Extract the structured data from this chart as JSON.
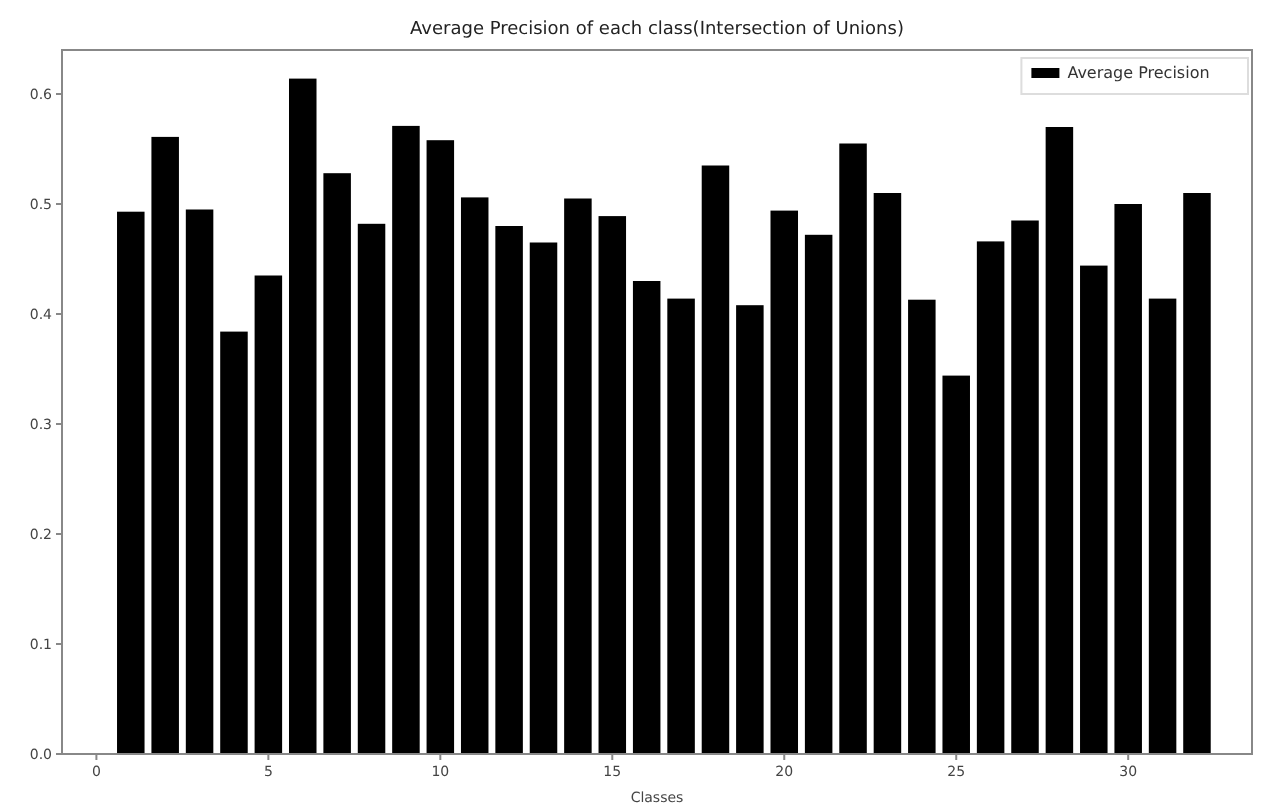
{
  "chart_data": {
    "type": "bar",
    "title": "Average Precision of each class(Intersection of Unions)",
    "xlabel": "Classes",
    "x": [
      1,
      2,
      3,
      4,
      5,
      6,
      7,
      8,
      9,
      10,
      11,
      12,
      13,
      14,
      15,
      16,
      17,
      18,
      19,
      20,
      21,
      22,
      23,
      24,
      25,
      26,
      27,
      28,
      29,
      30,
      31,
      32
    ],
    "series": [
      {
        "name": "Average Precision",
        "color": "#000000",
        "values": [
          0.493,
          0.561,
          0.495,
          0.384,
          0.435,
          0.614,
          0.528,
          0.482,
          0.571,
          0.558,
          0.506,
          0.48,
          0.465,
          0.505,
          0.489,
          0.43,
          0.414,
          0.535,
          0.408,
          0.494,
          0.472,
          0.555,
          0.51,
          0.413,
          0.344,
          0.466,
          0.485,
          0.57,
          0.444,
          0.5,
          0.414,
          0.51
        ]
      }
    ],
    "xlim": [
      -1,
      33.6
    ],
    "xticks": [
      0,
      5,
      10,
      15,
      20,
      25,
      30
    ],
    "ylim": [
      0,
      0.64
    ],
    "yticks": [
      {
        "value": 0,
        "label": "0.0"
      },
      {
        "value": 0.1,
        "label": "0.1"
      },
      {
        "value": 0.2,
        "label": "0.2"
      },
      {
        "value": 0.3,
        "label": "0.3"
      },
      {
        "value": 0.4,
        "label": "0.4"
      },
      {
        "value": 0.5,
        "label": "0.5"
      },
      {
        "value": 0.6,
        "label": "0.6"
      }
    ],
    "legend": "top right"
  }
}
